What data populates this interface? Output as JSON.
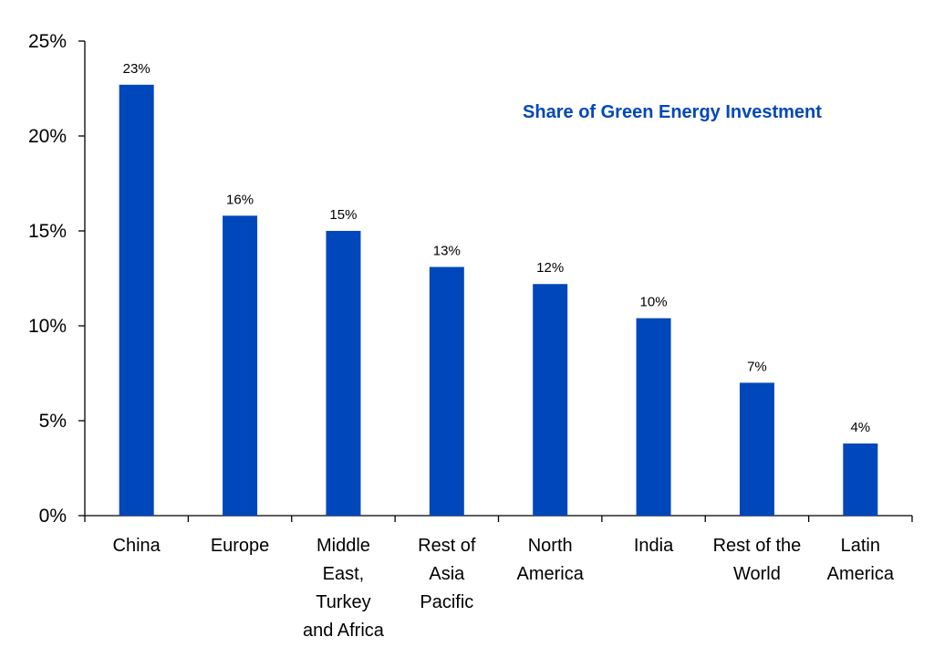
{
  "chart_data": {
    "type": "bar",
    "title": "Share of Green Energy Investment",
    "categories": [
      [
        "China"
      ],
      [
        "Europe"
      ],
      [
        "Middle",
        "East,",
        "Turkey",
        "and Africa"
      ],
      [
        "Rest of",
        "Asia",
        "Pacific"
      ],
      [
        "North",
        "America"
      ],
      [
        "India"
      ],
      [
        "Rest of the",
        "World"
      ],
      [
        "Latin",
        "America"
      ]
    ],
    "values": [
      22.7,
      15.8,
      15.0,
      13.1,
      12.2,
      10.4,
      7.0,
      3.8
    ],
    "data_labels": [
      "23%",
      "16%",
      "15%",
      "13%",
      "12%",
      "10%",
      "7%",
      "4%"
    ],
    "yticks": [
      "0%",
      "5%",
      "10%",
      "15%",
      "20%",
      "25%"
    ],
    "ytick_values": [
      0,
      5,
      10,
      15,
      20,
      25
    ],
    "ylim": [
      0,
      25
    ],
    "xlabel": "",
    "ylabel": "",
    "grid": false,
    "bar_color": "#0047bb",
    "title_color": "#0047bb"
  }
}
